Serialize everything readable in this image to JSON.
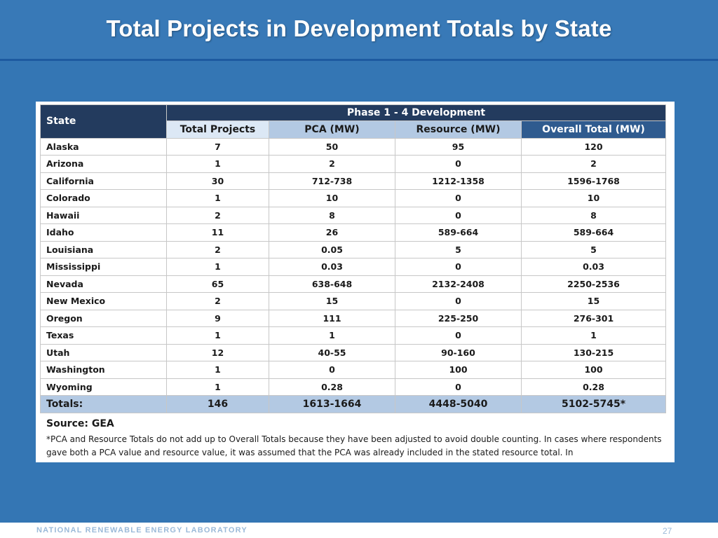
{
  "slide": {
    "title": "Total Projects in Development Totals by State",
    "footer": "NATIONAL RENEWABLE ENERGY LABORATORY",
    "page_number": "27"
  },
  "table": {
    "header_state": "State",
    "header_group": "Phase 1 - 4 Development",
    "columns": [
      "Total Projects",
      "PCA (MW)",
      "Resource (MW)",
      "Overall Total (MW)"
    ],
    "rows": [
      [
        "Alaska",
        "7",
        "50",
        "95",
        "120"
      ],
      [
        "Arizona",
        "1",
        "2",
        "0",
        "2"
      ],
      [
        "California",
        "30",
        "712-738",
        "1212-1358",
        "1596-1768"
      ],
      [
        "Colorado",
        "1",
        "10",
        "0",
        "10"
      ],
      [
        "Hawaii",
        "2",
        "8",
        "0",
        "8"
      ],
      [
        "Idaho",
        "11",
        "26",
        "589-664",
        "589-664"
      ],
      [
        "Louisiana",
        "2",
        "0.05",
        "5",
        "5"
      ],
      [
        "Mississippi",
        "1",
        "0.03",
        "0",
        "0.03"
      ],
      [
        "Nevada",
        "65",
        "638-648",
        "2132-2408",
        "2250-2536"
      ],
      [
        "New Mexico",
        "2",
        "15",
        "0",
        "15"
      ],
      [
        "Oregon",
        "9",
        "111",
        "225-250",
        "276-301"
      ],
      [
        "Texas",
        "1",
        "1",
        "0",
        "1"
      ],
      [
        "Utah",
        "12",
        "40-55",
        "90-160",
        "130-215"
      ],
      [
        "Washington",
        "1",
        "0",
        "100",
        "100"
      ],
      [
        "Wyoming",
        "1",
        "0.28",
        "0",
        "0.28"
      ]
    ],
    "totals": [
      "Totals:",
      "146",
      "1613-1664",
      "4448-5040",
      "5102-5745*"
    ]
  },
  "source": "Source: GEA",
  "note": "*PCA and Resource Totals do not add up to Overall Totals because they have been adjusted to avoid double counting. In cases where respondents gave both a PCA value and resource value, it was assumed that the PCA was already included in the stated resource total. In"
}
